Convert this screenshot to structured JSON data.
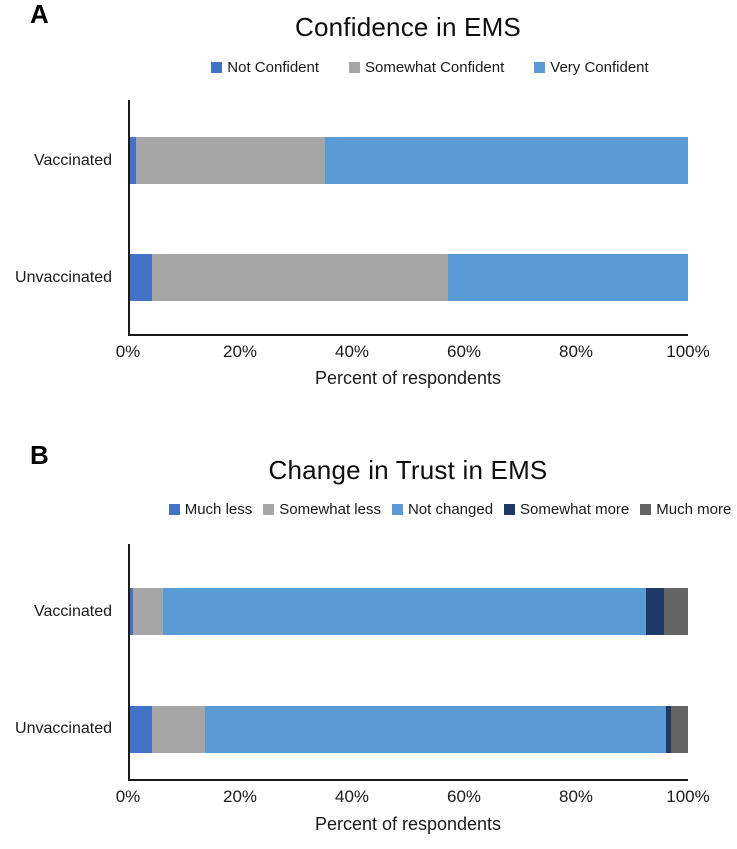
{
  "figure": {
    "background": "#ffffff",
    "axis_color": "#1a1a1a"
  },
  "chart_data": [
    {
      "type": "bar",
      "orientation": "horizontal",
      "stacked": true,
      "panel_label": "A",
      "title": "Confidence in EMS",
      "categories": [
        "Vaccinated",
        "Unvaccinated"
      ],
      "series": [
        {
          "name": "Not Confident",
          "color": "#4472C4",
          "values": [
            1,
            4
          ]
        },
        {
          "name": "Somewhat Confident",
          "color": "#A6A6A6",
          "values": [
            34,
            53
          ]
        },
        {
          "name": "Very Confident",
          "color": "#5B9BD5",
          "values": [
            65,
            43
          ]
        }
      ],
      "xlabel": "Percent of respondents",
      "x_ticks": [
        "0%",
        "20%",
        "40%",
        "60%",
        "80%",
        "100%"
      ],
      "xlim": [
        0,
        100
      ],
      "grid": false,
      "legend_position": "top"
    },
    {
      "type": "bar",
      "orientation": "horizontal",
      "stacked": true,
      "panel_label": "B",
      "title": "Change in Trust in EMS",
      "categories": [
        "Vaccinated",
        "Unvaccinated"
      ],
      "series": [
        {
          "name": "Much less",
          "color": "#4472C4",
          "values": [
            0.5,
            4
          ]
        },
        {
          "name": "Somewhat less",
          "color": "#A6A6A6",
          "values": [
            5.5,
            9.5
          ]
        },
        {
          "name": "Not changed",
          "color": "#5B9BD5",
          "values": [
            86.5,
            82.5
          ]
        },
        {
          "name": "Somewhat more",
          "color": "#1F3864",
          "values": [
            3.2,
            1
          ]
        },
        {
          "name": "Much more",
          "color": "#636363",
          "values": [
            4.3,
            3
          ]
        }
      ],
      "xlabel": "Percent of respondents",
      "x_ticks": [
        "0%",
        "20%",
        "40%",
        "60%",
        "80%",
        "100%"
      ],
      "xlim": [
        0,
        100
      ],
      "grid": false,
      "legend_position": "top"
    }
  ]
}
